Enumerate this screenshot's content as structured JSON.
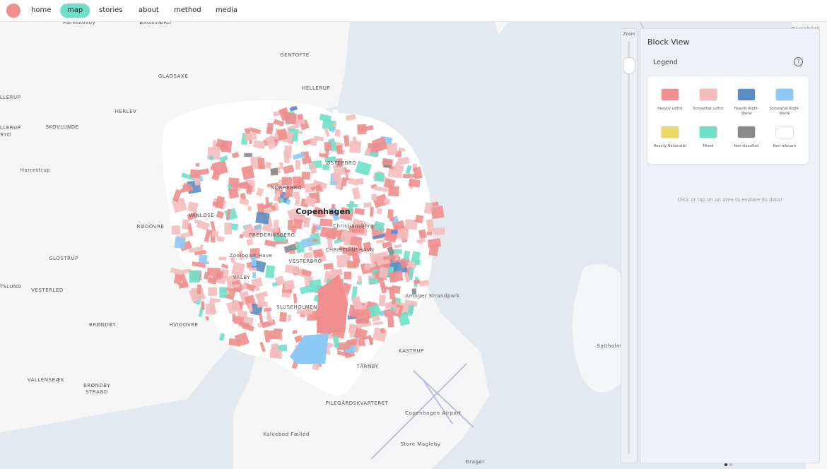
{
  "nav": {
    "items": [
      "home",
      "map",
      "stories",
      "about",
      "method",
      "media"
    ],
    "active": "map"
  },
  "map": {
    "labels": [
      "Hareskovby",
      "BAGSVÆRD",
      "Skovshoved",
      "GENTOFTE",
      "GLADSAXE",
      "HELLERUP",
      "ALLERUP",
      "HERLEV",
      "SKOVLUNDE",
      "ALLERUP",
      "SYD",
      "Harrestrup",
      "ØSTERBRO",
      "NØRREBRO",
      "Copenhagen",
      "VANLØSE",
      "RØDOVRE",
      "FREDERIKSBERG",
      "Christiansborg",
      "CHRISTIANSHAVN",
      "Zoologisk Have",
      "VESTERBRO",
      "GLOSTRUP",
      "TSLUND",
      "VESTERLED",
      "VALBY",
      "Amager Strandpark",
      "SLUSEHOLMEN",
      "BRØNDBY",
      "HVIDOVRE",
      "KASTRUP",
      "TÅRNBY",
      "VALLENSBÆK",
      "BRØNDBY",
      "STRAND",
      "PILEGÅRDSKVARTERET",
      "Copenhagen Airport",
      "Kalvebod Fælled",
      "Store Magleby",
      "Dragør",
      "Saltholm",
      "Barsebäck"
    ]
  },
  "zoom": {
    "label": "Zoom"
  },
  "panel": {
    "title": "Block View",
    "legend_title": "Legend",
    "help": "?",
    "legend": [
      {
        "label": "Heavily Leftist",
        "color": "#ee8e8e"
      },
      {
        "label": "Somewhat Leftist",
        "color": "#f4bcbc"
      },
      {
        "label": "Heavily Right-liberal",
        "color": "#5b8ec4"
      },
      {
        "label": "Somewhat Right-liberal",
        "color": "#8ec9f5"
      },
      {
        "label": "Heavily Nationalist",
        "color": "#ead867"
      },
      {
        "label": "Mixed",
        "color": "#6fe0c6"
      },
      {
        "label": "Non-classified",
        "color": "#8a8a8a"
      },
      {
        "label": "Non-relevant",
        "color": "#ffffff"
      }
    ],
    "hint": "Click or tap on an area to explore its data!"
  }
}
